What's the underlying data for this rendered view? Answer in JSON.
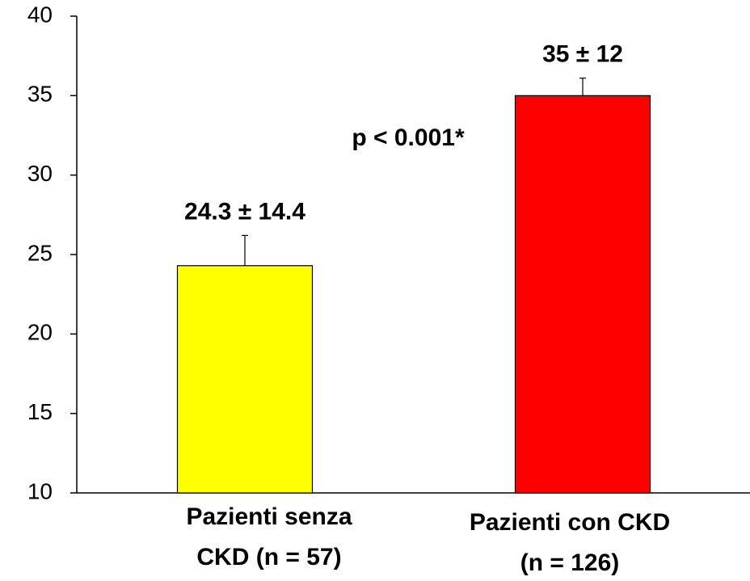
{
  "chart_data": {
    "type": "bar",
    "categories": [
      [
        "Pazienti senza",
        "CKD  (n = 57)"
      ],
      [
        "Pazienti con CKD",
        "(n = 126)"
      ]
    ],
    "series": [
      {
        "colors": [
          "#ffff00",
          "#ff0000"
        ],
        "values": [
          24.3,
          35
        ],
        "errors": [
          1.9,
          1.1
        ],
        "value_labels": [
          "24.3 ± 14.4",
          "35 ± 12"
        ]
      }
    ],
    "annotation": "p < 0.001*",
    "ylim": [
      10,
      40
    ],
    "yticks": [
      10,
      15,
      20,
      25,
      30,
      35,
      40
    ],
    "grid": false
  }
}
